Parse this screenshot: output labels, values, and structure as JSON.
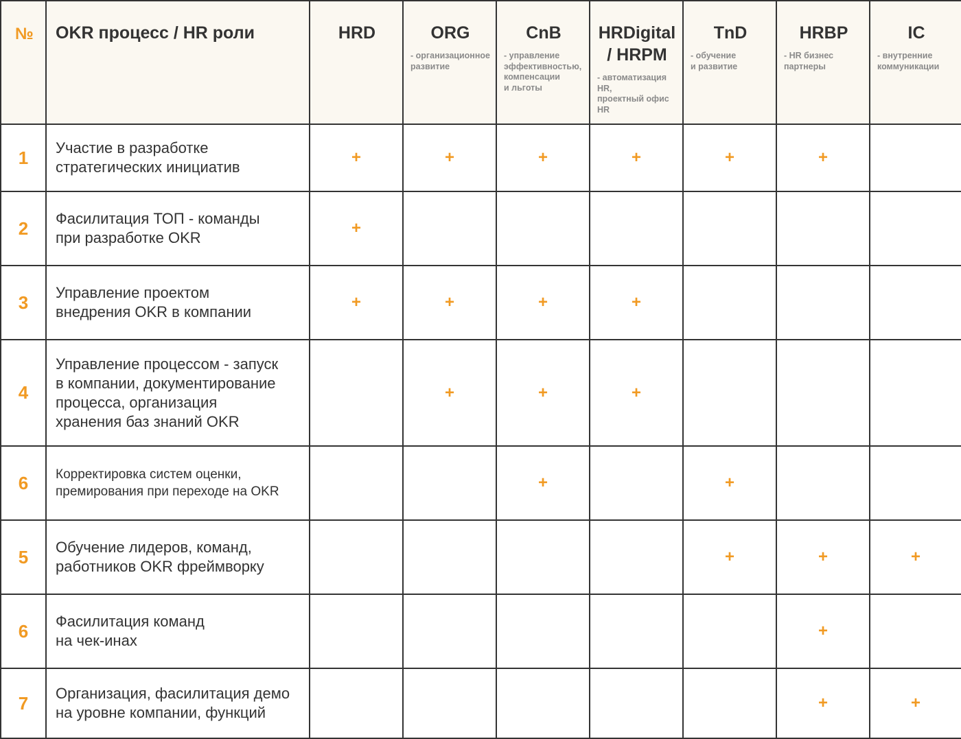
{
  "header": {
    "num": "№",
    "process": "OKR процесс / HR роли",
    "roles": [
      {
        "name": "HRD",
        "desc": ""
      },
      {
        "name": "ORG",
        "desc": "- организационное\nразвитие"
      },
      {
        "name": "CnB",
        "desc": "- управление\nэффективностью,\nкомпенсации\nи льготы"
      },
      {
        "name": "HRDigital\n/ HRPM",
        "desc": "- автоматизация HR,\nпроектный офис HR"
      },
      {
        "name": "TnD",
        "desc": "- обучение\nи развитие"
      },
      {
        "name": "HRBP",
        "desc": "- HR бизнес\nпартнеры"
      },
      {
        "name": "IC",
        "desc": "- внутренние\nкоммуникации"
      }
    ]
  },
  "mark_symbol": "+",
  "accent_color": "#f19a23",
  "rows": [
    {
      "num": "1",
      "process": "Участие в разработке\nстратегических инициатив",
      "small": false,
      "marks": [
        true,
        true,
        true,
        true,
        true,
        true,
        false
      ]
    },
    {
      "num": "2",
      "process": "Фасилитация ТОП - команды\nпри разработке OKR",
      "small": false,
      "marks": [
        true,
        false,
        false,
        false,
        false,
        false,
        false
      ]
    },
    {
      "num": "3",
      "process": "Управление проектом\nвнедрения OKR в компании",
      "small": false,
      "marks": [
        true,
        true,
        true,
        true,
        false,
        false,
        false
      ]
    },
    {
      "num": "4",
      "process": "Управление процессом - запуск\nв компании, документирование\nпроцесса, организация\nхранения баз знаний OKR",
      "small": false,
      "marks": [
        false,
        true,
        true,
        true,
        false,
        false,
        false
      ]
    },
    {
      "num": "6",
      "process": "Корректировка систем оценки,\nпремирования при переходе на OKR",
      "small": true,
      "marks": [
        false,
        false,
        true,
        false,
        true,
        false,
        false
      ]
    },
    {
      "num": "5",
      "process": "Обучение лидеров, команд,\nработников OKR фреймворку",
      "small": false,
      "marks": [
        false,
        false,
        false,
        false,
        true,
        true,
        true
      ]
    },
    {
      "num": "6",
      "process": "Фасилитация команд\nна чек-инах",
      "small": false,
      "marks": [
        false,
        false,
        false,
        false,
        false,
        true,
        false
      ]
    },
    {
      "num": "7",
      "process": "Организация, фасилитация демо\nна уровне компании, функций",
      "small": false,
      "marks": [
        false,
        false,
        false,
        false,
        false,
        true,
        true
      ]
    }
  ]
}
